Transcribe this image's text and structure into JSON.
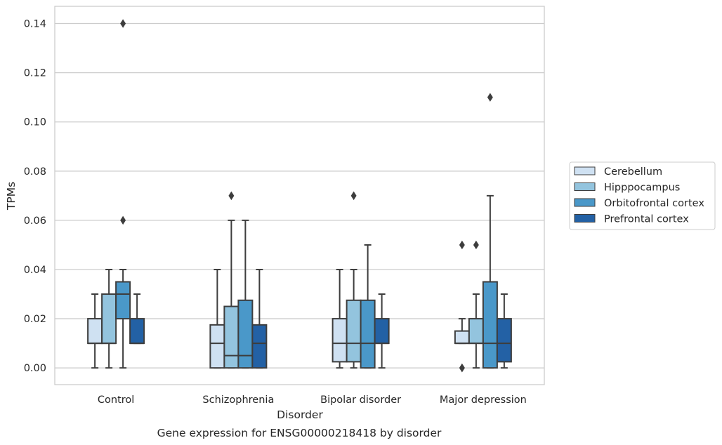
{
  "chart_data": {
    "type": "box",
    "title": "",
    "caption": "Gene expression for ENSG00000218418 by disorder",
    "xlabel": "Disorder",
    "ylabel": "TPMs",
    "ylim": [
      -0.0068,
      0.147
    ],
    "yticks": [
      0.0,
      0.02,
      0.04,
      0.06,
      0.08,
      0.1,
      0.12,
      0.14
    ],
    "ytick_labels": [
      "0.00",
      "0.02",
      "0.04",
      "0.06",
      "0.08",
      "0.10",
      "0.12",
      "0.14"
    ],
    "grid": "horizontal",
    "legend_position": "right",
    "categories": [
      "Control",
      "Schizophrenia",
      "Bipolar disorder",
      "Major depression"
    ],
    "series": [
      {
        "name": "Cerebellum",
        "color": "#cfe1f2",
        "boxes": [
          {
            "whisker_low": 0.0,
            "q1": 0.01,
            "median": 0.01,
            "q3": 0.02,
            "whisker_high": 0.03,
            "outliers": []
          },
          {
            "whisker_low": 0.0,
            "q1": 0.0,
            "median": 0.01,
            "q3": 0.0175,
            "whisker_high": 0.04,
            "outliers": []
          },
          {
            "whisker_low": 0.0,
            "q1": 0.0025,
            "median": 0.01,
            "q3": 0.02,
            "whisker_high": 0.04,
            "outliers": []
          },
          {
            "whisker_low": 0.01,
            "q1": 0.01,
            "median": 0.01,
            "q3": 0.015,
            "whisker_high": 0.02,
            "outliers": [
              0.05,
              0.0,
              0.0
            ]
          }
        ]
      },
      {
        "name": "Hipppocampus",
        "color": "#93c4de",
        "boxes": [
          {
            "whisker_low": 0.0,
            "q1": 0.01,
            "median": 0.01,
            "q3": 0.03,
            "whisker_high": 0.04,
            "outliers": []
          },
          {
            "whisker_low": 0.0,
            "q1": 0.0,
            "median": 0.005,
            "q3": 0.025,
            "whisker_high": 0.06,
            "outliers": [
              0.07
            ]
          },
          {
            "whisker_low": 0.0,
            "q1": 0.0025,
            "median": 0.01,
            "q3": 0.0275,
            "whisker_high": 0.04,
            "outliers": [
              0.07
            ]
          },
          {
            "whisker_low": 0.0,
            "q1": 0.01,
            "median": 0.01,
            "q3": 0.02,
            "whisker_high": 0.03,
            "outliers": [
              0.05
            ]
          }
        ]
      },
      {
        "name": "Orbitofrontal cortex",
        "color": "#4a98c9",
        "boxes": [
          {
            "whisker_low": 0.0,
            "q1": 0.02,
            "median": 0.03,
            "q3": 0.035,
            "whisker_high": 0.04,
            "outliers": [
              0.14,
              0.06
            ]
          },
          {
            "whisker_low": 0.0,
            "q1": 0.0,
            "median": 0.005,
            "q3": 0.0275,
            "whisker_high": 0.06,
            "outliers": []
          },
          {
            "whisker_low": 0.0,
            "q1": 0.0,
            "median": 0.01,
            "q3": 0.0275,
            "whisker_high": 0.05,
            "outliers": []
          },
          {
            "whisker_low": 0.0,
            "q1": 0.0,
            "median": 0.01,
            "q3": 0.035,
            "whisker_high": 0.07,
            "outliers": [
              0.11
            ]
          }
        ]
      },
      {
        "name": "Prefrontal cortex",
        "color": "#2361a5",
        "boxes": [
          {
            "whisker_low": 0.01,
            "q1": 0.01,
            "median": 0.01,
            "q3": 0.02,
            "whisker_high": 0.03,
            "outliers": []
          },
          {
            "whisker_low": 0.0,
            "q1": 0.0,
            "median": 0.01,
            "q3": 0.0175,
            "whisker_high": 0.04,
            "outliers": []
          },
          {
            "whisker_low": 0.0,
            "q1": 0.01,
            "median": 0.01,
            "q3": 0.02,
            "whisker_high": 0.03,
            "outliers": []
          },
          {
            "whisker_low": 0.0,
            "q1": 0.0025,
            "median": 0.01,
            "q3": 0.02,
            "whisker_high": 0.03,
            "outliers": []
          }
        ]
      }
    ]
  }
}
